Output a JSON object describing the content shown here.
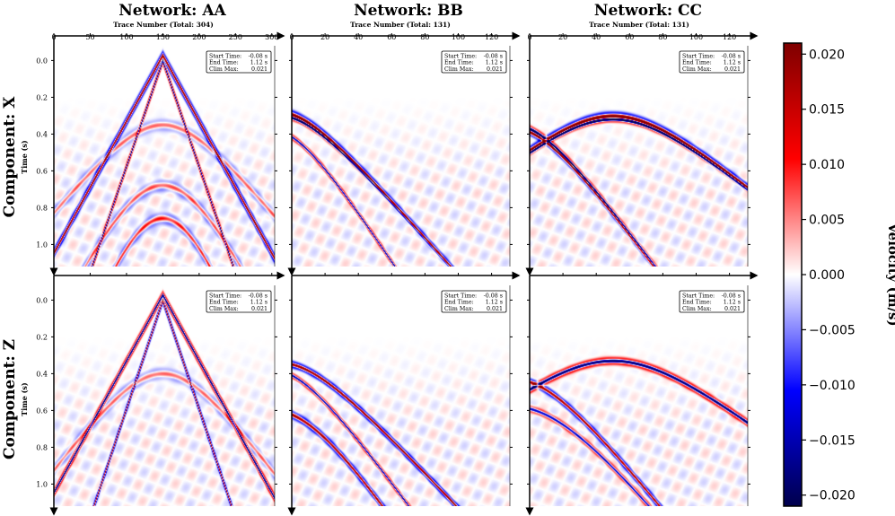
{
  "chart_data": {
    "type": "heatmap",
    "description": "Seismic shot gathers (velocity) per network and component",
    "networks": [
      {
        "name": "Network: AA",
        "xlabel": "Trace Number (Total: 304)",
        "total_traces": 304,
        "xlim": [
          0,
          304
        ],
        "xticks": [
          0,
          50,
          100,
          150,
          200,
          250,
          300
        ]
      },
      {
        "name": "Network: BB",
        "xlabel": "Trace Number (Total: 131)",
        "total_traces": 131,
        "xlim": [
          0,
          131
        ],
        "xticks": [
          0,
          20,
          40,
          60,
          80,
          100,
          120
        ]
      },
      {
        "name": "Network: CC",
        "xlabel": "Trace Number (Total: 131)",
        "total_traces": 131,
        "xlim": [
          0,
          131
        ],
        "xticks": [
          0,
          20,
          40,
          60,
          80,
          100,
          120
        ]
      }
    ],
    "components": [
      {
        "name": "Component: X",
        "ylabel": "Time (s)"
      },
      {
        "name": "Component: Z",
        "ylabel": "Time (s)"
      }
    ],
    "ylim": [
      1.12,
      -0.08
    ],
    "yticks": [
      "0.0",
      "0.2",
      "0.4",
      "0.6",
      "0.8",
      "1.0"
    ],
    "info_box": {
      "rows": [
        {
          "label": "Start Time:",
          "value": "-0.08 s"
        },
        {
          "label": "End Time:",
          "value": "1.12 s"
        },
        {
          "label": "Clim Max:",
          "value": "0.021"
        }
      ]
    },
    "colorbar": {
      "label": "Velocity (m/s)",
      "cmap": "seismic",
      "clim": [
        -0.021,
        0.021
      ],
      "ticks": [
        {
          "value": 0.02,
          "label": "0.020"
        },
        {
          "value": 0.015,
          "label": "0.015"
        },
        {
          "value": 0.01,
          "label": "0.010"
        },
        {
          "value": 0.005,
          "label": "0.005"
        },
        {
          "value": 0.0,
          "label": "0.000"
        },
        {
          "value": -0.005,
          "label": "−0.005"
        },
        {
          "value": -0.01,
          "label": "−0.010"
        },
        {
          "value": -0.015,
          "label": "−0.015"
        },
        {
          "value": -0.02,
          "label": "−0.020"
        }
      ]
    },
    "events": [
      {
        "net": 0,
        "comp": 0,
        "kind": "v",
        "apex_x": 150,
        "t0": -0.03,
        "slope": 0.00717,
        "pol": 1,
        "w": 0.016,
        "amp": 1.0
      },
      {
        "net": 0,
        "comp": 0,
        "kind": "v",
        "apex_x": 150,
        "t0": 0.0,
        "slope": 0.0115,
        "pol": -1,
        "w": 0.013,
        "amp": 1.0
      },
      {
        "net": 0,
        "comp": 0,
        "kind": "hyp",
        "apex_x": 150,
        "t0": 0.86,
        "v": 90,
        "pol": 1,
        "w": 0.02,
        "amp": 0.45
      },
      {
        "net": 0,
        "comp": 0,
        "kind": "hyp",
        "apex_x": 150,
        "t0": 0.68,
        "v": 120,
        "pol": 1,
        "w": 0.02,
        "amp": 0.35
      },
      {
        "net": 0,
        "comp": 0,
        "kind": "hyp",
        "apex_x": 150,
        "t0": 0.35,
        "v": 200,
        "pol": 1,
        "w": 0.02,
        "amp": 0.3
      },
      {
        "net": 1,
        "comp": 0,
        "kind": "hyp",
        "apex_x": -8,
        "t0": 0.28,
        "v": 95,
        "pol": 1,
        "w": 0.014,
        "amp": 1.0
      },
      {
        "net": 1,
        "comp": 0,
        "kind": "hyp",
        "apex_x": -8,
        "t0": 0.3,
        "v": 95,
        "pol": -1,
        "w": 0.01,
        "amp": 0.9
      },
      {
        "net": 1,
        "comp": 0,
        "kind": "hyp",
        "apex_x": -12,
        "t0": 0.38,
        "v": 70,
        "pol": -1,
        "w": 0.01,
        "amp": 0.8
      },
      {
        "net": 2,
        "comp": 0,
        "kind": "hyp",
        "apex_x": 50,
        "t0": 0.3,
        "v": 130,
        "pol": 1,
        "w": 0.014,
        "amp": 1.0
      },
      {
        "net": 2,
        "comp": 0,
        "kind": "hyp",
        "apex_x": 50,
        "t0": 0.32,
        "v": 130,
        "pol": -1,
        "w": 0.01,
        "amp": 0.9
      },
      {
        "net": 2,
        "comp": 0,
        "kind": "hyp",
        "apex_x": -10,
        "t0": 0.35,
        "v": 80,
        "pol": -1,
        "w": 0.012,
        "amp": 0.9
      },
      {
        "net": 2,
        "comp": 0,
        "kind": "hyp",
        "apex_x": -10,
        "t0": 0.37,
        "v": 80,
        "pol": 1,
        "w": 0.012,
        "amp": 0.8
      },
      {
        "net": 0,
        "comp": 1,
        "kind": "v",
        "apex_x": 150,
        "t0": -0.03,
        "slope": 0.00717,
        "pol": -1,
        "w": 0.014,
        "amp": 1.0
      },
      {
        "net": 0,
        "comp": 1,
        "kind": "v",
        "apex_x": 150,
        "t0": 0.0,
        "slope": 0.0118,
        "pol": 1,
        "w": 0.013,
        "amp": 1.0
      },
      {
        "net": 0,
        "comp": 1,
        "kind": "hyp",
        "apex_x": 150,
        "t0": 0.4,
        "v": 180,
        "pol": 1,
        "w": 0.02,
        "amp": 0.3
      },
      {
        "net": 1,
        "comp": 1,
        "kind": "hyp",
        "apex_x": -8,
        "t0": 0.34,
        "v": 100,
        "pol": 1,
        "w": 0.012,
        "amp": 1.0
      },
      {
        "net": 1,
        "comp": 1,
        "kind": "hyp",
        "apex_x": -12,
        "t0": 0.38,
        "v": 78,
        "pol": -1,
        "w": 0.01,
        "amp": 0.8
      },
      {
        "net": 1,
        "comp": 1,
        "kind": "hyp",
        "apex_x": -12,
        "t0": 0.6,
        "v": 70,
        "pol": 1,
        "w": 0.014,
        "amp": 0.9
      },
      {
        "net": 2,
        "comp": 1,
        "kind": "hyp",
        "apex_x": 50,
        "t0": 0.33,
        "v": 140,
        "pol": -1,
        "w": 0.013,
        "amp": 1.0
      },
      {
        "net": 2,
        "comp": 1,
        "kind": "hyp",
        "apex_x": -10,
        "t0": 0.43,
        "v": 85,
        "pol": 1,
        "w": 0.013,
        "amp": 0.9
      },
      {
        "net": 2,
        "comp": 1,
        "kind": "hyp",
        "apex_x": -10,
        "t0": 0.58,
        "v": 85,
        "pol": -1,
        "w": 0.012,
        "amp": 0.7
      }
    ]
  }
}
